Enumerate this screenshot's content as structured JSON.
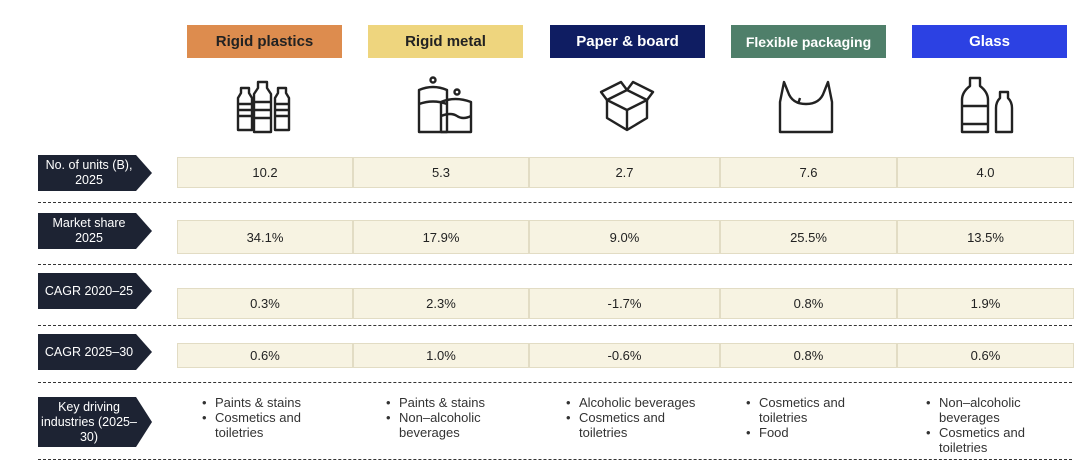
{
  "colors": {
    "rigid_plastics": "#dd8c4e",
    "rigid_metal": "#eed57e",
    "paper_board": "#0f1d62",
    "flexible": "#4f7f6a",
    "glass": "#2c41e3",
    "row_label_bg": "#1d2333",
    "cell_bg": "#f7f3e2"
  },
  "categories": [
    {
      "name": "Rigid plastics",
      "icon": "plastic-bottles-icon"
    },
    {
      "name": "Rigid metal",
      "icon": "metal-cans-icon"
    },
    {
      "name": "Paper & board",
      "icon": "cardboard-box-icon"
    },
    {
      "name": "Flexible packaging",
      "icon": "plastic-bag-icon"
    },
    {
      "name": "Glass",
      "icon": "glass-bottles-icon"
    }
  ],
  "row_labels": {
    "units": "No. of units (B), 2025",
    "share": "Market share 2025",
    "cagr1": "CAGR 2020–25",
    "cagr2": "CAGR 2025–30",
    "drivers": "Key driving industries (2025–30)"
  },
  "rows": {
    "units": [
      "10.2",
      "5.3",
      "2.7",
      "7.6",
      "4.0"
    ],
    "share": [
      "34.1%",
      "17.9%",
      "9.0%",
      "25.5%",
      "13.5%"
    ],
    "cagr1": [
      "0.3%",
      "2.3%",
      "-1.7%",
      "0.8%",
      "1.9%"
    ],
    "cagr2": [
      "0.6%",
      "1.0%",
      "-0.6%",
      "0.8%",
      "0.6%"
    ]
  },
  "drivers": [
    [
      "Paints & stains",
      "Cosmetics and toiletries"
    ],
    [
      "Paints & stains",
      "Non–alcoholic beverages"
    ],
    [
      "Alcoholic beverages",
      "Cosmetics and toiletries"
    ],
    [
      "Cosmetics and toiletries",
      "Food"
    ],
    [
      "Non–alcoholic beverages",
      "Cosmetics and toiletries"
    ]
  ]
}
